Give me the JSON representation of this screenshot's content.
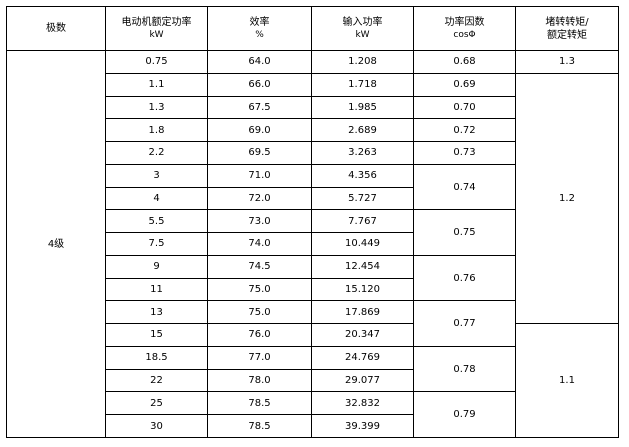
{
  "headers": {
    "poles": "极数",
    "power": "电动机额定功率",
    "power_unit": "kW",
    "efficiency": "效率",
    "efficiency_unit": "%",
    "input": "输入功率",
    "input_unit": "kW",
    "pf": "功率因数",
    "pf_unit": "cosΦ",
    "torque_l1": "堵转转矩/",
    "torque_l2": "额定转矩"
  },
  "poles_value": "4级",
  "rows": [
    {
      "power": "0.75",
      "efficiency": "64.0",
      "input": "1.208"
    },
    {
      "power": "1.1",
      "efficiency": "66.0",
      "input": "1.718"
    },
    {
      "power": "1.3",
      "efficiency": "67.5",
      "input": "1.985"
    },
    {
      "power": "1.8",
      "efficiency": "69.0",
      "input": "2.689"
    },
    {
      "power": "2.2",
      "efficiency": "69.5",
      "input": "3.263"
    },
    {
      "power": "3",
      "efficiency": "71.0",
      "input": "4.356"
    },
    {
      "power": "4",
      "efficiency": "72.0",
      "input": "5.727"
    },
    {
      "power": "5.5",
      "efficiency": "73.0",
      "input": "7.767"
    },
    {
      "power": "7.5",
      "efficiency": "74.0",
      "input": "10.449"
    },
    {
      "power": "9",
      "efficiency": "74.5",
      "input": "12.454"
    },
    {
      "power": "11",
      "efficiency": "75.0",
      "input": "15.120"
    },
    {
      "power": "13",
      "efficiency": "75.0",
      "input": "17.869"
    },
    {
      "power": "15",
      "efficiency": "76.0",
      "input": "20.347"
    },
    {
      "power": "18.5",
      "efficiency": "77.0",
      "input": "24.769"
    },
    {
      "power": "22",
      "efficiency": "78.0",
      "input": "29.077"
    },
    {
      "power": "25",
      "efficiency": "78.5",
      "input": "32.832"
    },
    {
      "power": "30",
      "efficiency": "78.5",
      "input": "39.399"
    }
  ],
  "pf_groups": [
    "0.68",
    "0.69",
    "0.70",
    "0.72",
    "0.73",
    "0.74",
    "0.75",
    "0.76",
    "0.77",
    "0.78",
    "0.79"
  ],
  "torque_groups": [
    "1.3",
    "1.2",
    "1.1"
  ]
}
